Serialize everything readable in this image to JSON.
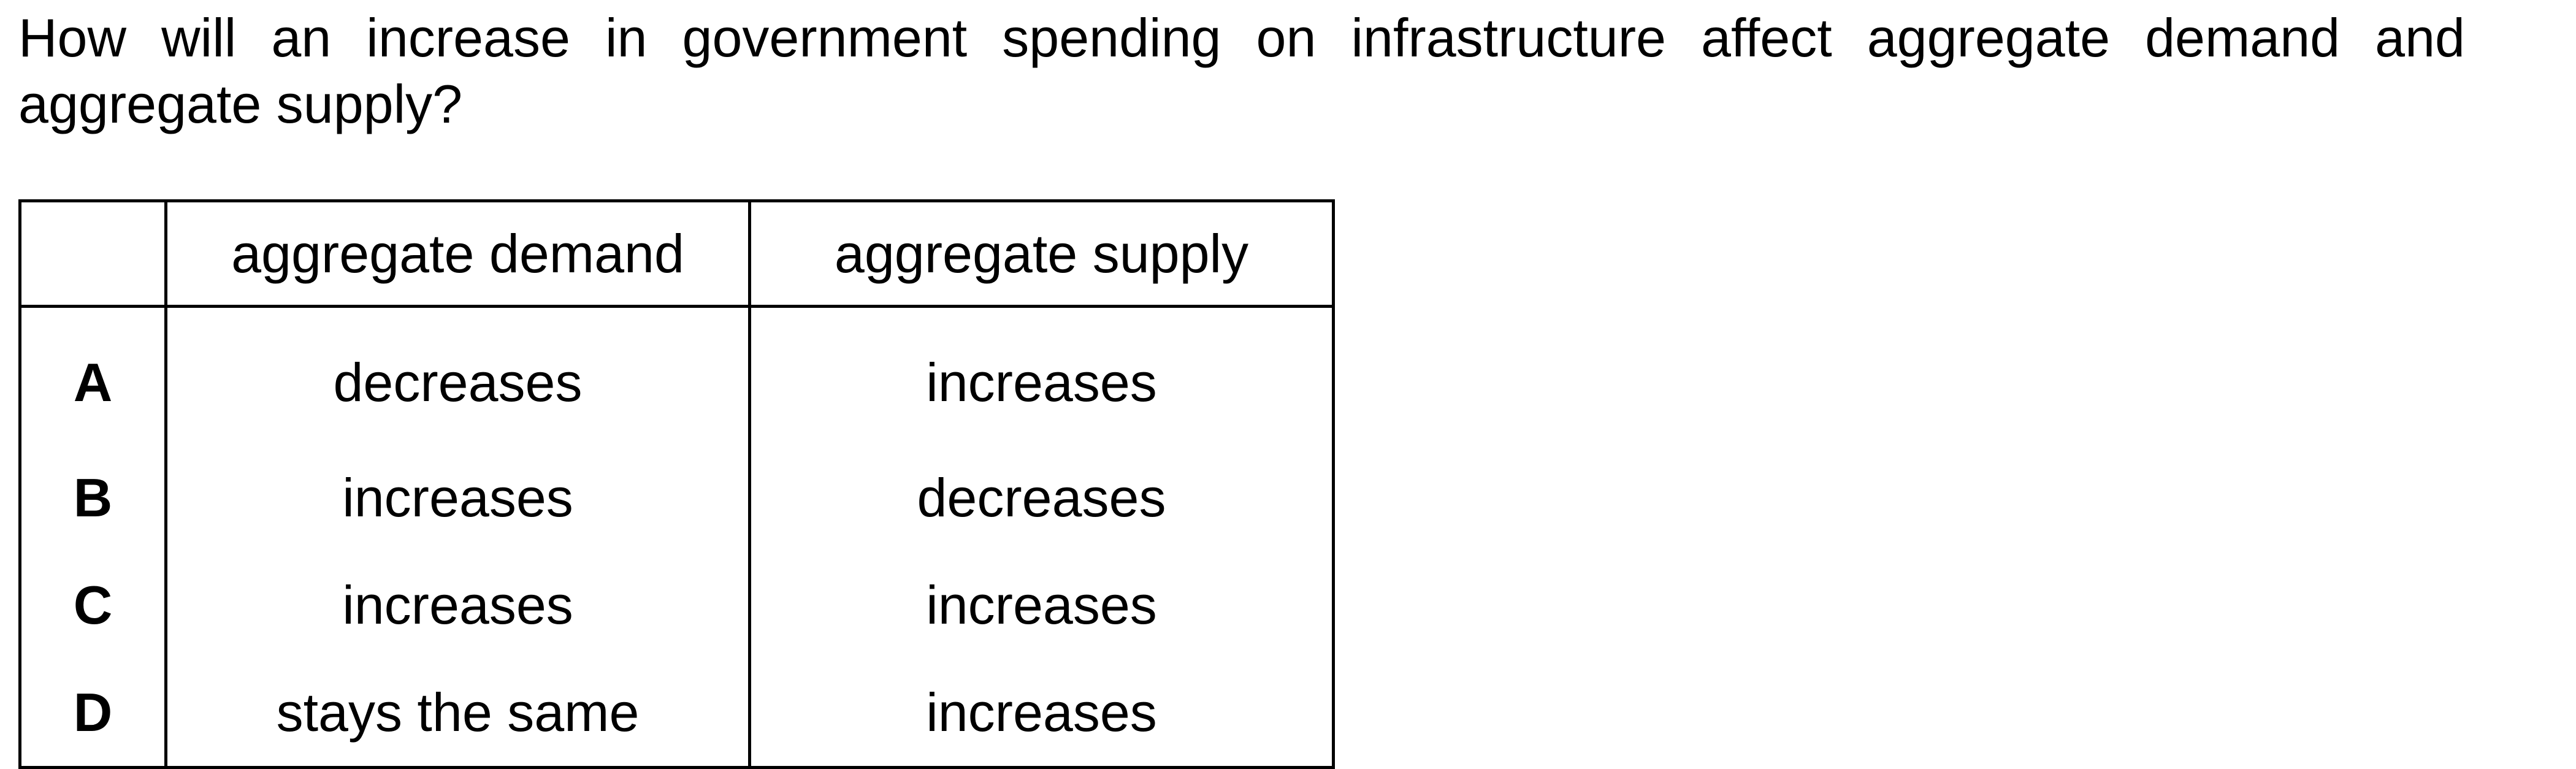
{
  "question": {
    "text": "How will an increase in government spending on infrastructure affect aggregate demand and aggregate supply?"
  },
  "table": {
    "headers": [
      "",
      "aggregate demand",
      "aggregate supply"
    ],
    "rows": [
      {
        "option": "A",
        "aggregate_demand": "decreases",
        "aggregate_supply": "increases"
      },
      {
        "option": "B",
        "aggregate_demand": "increases",
        "aggregate_supply": "decreases"
      },
      {
        "option": "C",
        "aggregate_demand": "increases",
        "aggregate_supply": "increases"
      },
      {
        "option": "D",
        "aggregate_demand": "stays the same",
        "aggregate_supply": "increases"
      }
    ]
  }
}
